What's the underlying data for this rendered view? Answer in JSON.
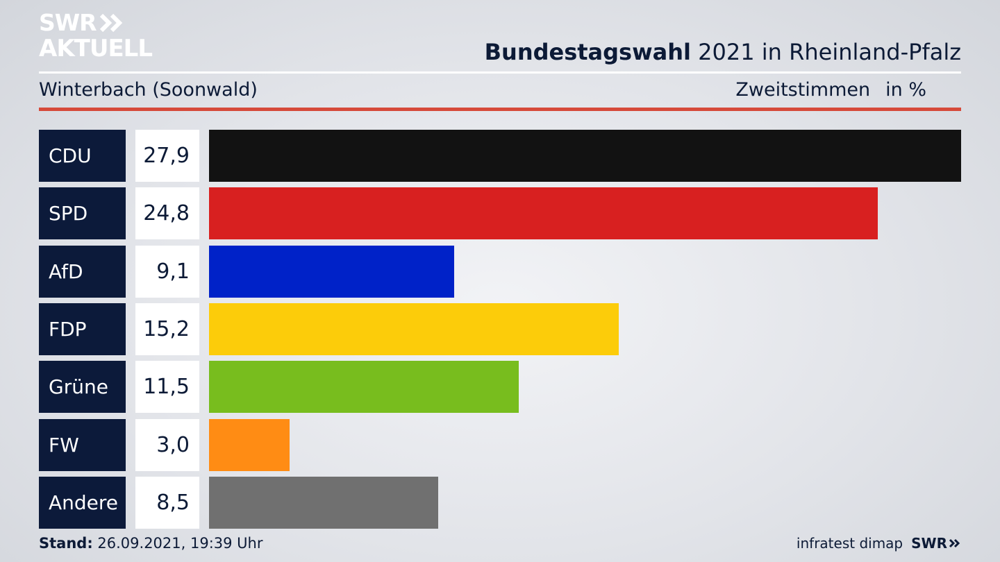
{
  "logo": {
    "line1": "SWR",
    "line2": "AKTUELL"
  },
  "header": {
    "title_bold": "Bundestagswahl",
    "title_rest": " 2021 in Rheinland-Pfalz"
  },
  "subheader": {
    "location": "Winterbach (Soonwald)",
    "measure": "Zweitstimmen",
    "unit": "in %"
  },
  "footer": {
    "stand_label": "Stand:",
    "stand_value": " 26.09.2021, 19:39 Uhr",
    "source": "infratest dimap",
    "brand": "SWR"
  },
  "chart_data": {
    "type": "bar",
    "orientation": "horizontal",
    "categories": [
      "CDU",
      "SPD",
      "AfD",
      "FDP",
      "Grüne",
      "FW",
      "Andere"
    ],
    "values": [
      27.9,
      24.8,
      9.1,
      15.2,
      11.5,
      3.0,
      8.5
    ],
    "value_labels": [
      "27,9",
      "24,8",
      "9,1",
      "15,2",
      "11,5",
      "3,0",
      "8,5"
    ],
    "colors": [
      "#121212",
      "#d82020",
      "#0022c8",
      "#fccc0a",
      "#78bd1e",
      "#ff8c14",
      "#707070"
    ],
    "xlim": [
      0,
      27.9
    ]
  }
}
